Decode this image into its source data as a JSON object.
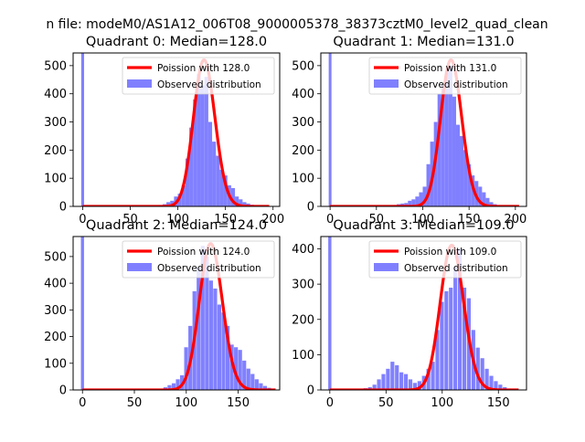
{
  "figure": {
    "suptitle": "n file: modeM0/AS1A12_006T08_9000005378_38373cztM0_level2_quad_clean"
  },
  "colors": {
    "hist": "#8080ff",
    "poisson": "#ff0000"
  },
  "chart_data": [
    {
      "type": "bar",
      "title": "Quadrant 0: Median=128.0",
      "xlim": [
        -10,
        207
      ],
      "ylim": [
        0,
        545
      ],
      "xticks": [
        0,
        50,
        100,
        150,
        200
      ],
      "xtick_labels": [
        "0",
        "50",
        "100",
        "150",
        "200"
      ],
      "yticks": [
        0,
        100,
        200,
        300,
        400,
        500
      ],
      "ytick_labels": [
        "0",
        "100",
        "200",
        "300",
        "400",
        "500"
      ],
      "legend": {
        "position": "top-right",
        "line_label": "Poission with 128.0",
        "patch_label": "Observed distribution"
      },
      "median": 128,
      "hist": {
        "bin_width": 4,
        "spike": {
          "x": 0,
          "width": 3,
          "value": 600
        },
        "bins": [
          [
            72,
            2
          ],
          [
            76,
            3
          ],
          [
            80,
            5
          ],
          [
            84,
            8
          ],
          [
            88,
            15
          ],
          [
            92,
            20
          ],
          [
            96,
            35
          ],
          [
            100,
            45
          ],
          [
            104,
            75
          ],
          [
            108,
            170
          ],
          [
            112,
            280
          ],
          [
            116,
            380
          ],
          [
            120,
            470
          ],
          [
            124,
            430
          ],
          [
            128,
            460
          ],
          [
            132,
            300
          ],
          [
            136,
            230
          ],
          [
            140,
            180
          ],
          [
            144,
            130
          ],
          [
            148,
            110
          ],
          [
            152,
            75
          ],
          [
            156,
            65
          ],
          [
            160,
            35
          ],
          [
            164,
            25
          ],
          [
            168,
            15
          ],
          [
            172,
            10
          ],
          [
            176,
            6
          ],
          [
            180,
            3
          ],
          [
            184,
            2
          ],
          [
            188,
            1
          ]
        ]
      },
      "poisson": {
        "x_range": [
          0,
          196
        ],
        "peak": 520
      }
    },
    {
      "type": "bar",
      "title": "Quadrant 1: Median=131.0",
      "xlim": [
        -10,
        212
      ],
      "ylim": [
        0,
        545
      ],
      "xticks": [
        0,
        50,
        100,
        150,
        200
      ],
      "xtick_labels": [
        "0",
        "50",
        "100",
        "150",
        "200"
      ],
      "yticks": [
        0,
        100,
        200,
        300,
        400,
        500
      ],
      "ytick_labels": [
        "0",
        "100",
        "200",
        "300",
        "400",
        "500"
      ],
      "legend": {
        "position": "top-right",
        "line_label": "Poission with 131.0",
        "patch_label": "Observed distribution"
      },
      "median": 131,
      "hist": {
        "bin_width": 4,
        "spike": {
          "x": 0,
          "width": 3,
          "value": 600
        },
        "bins": [
          [
            60,
            2
          ],
          [
            64,
            3
          ],
          [
            68,
            5
          ],
          [
            72,
            8
          ],
          [
            76,
            10
          ],
          [
            80,
            12
          ],
          [
            84,
            20
          ],
          [
            88,
            25
          ],
          [
            92,
            35
          ],
          [
            96,
            50
          ],
          [
            100,
            70
          ],
          [
            104,
            150
          ],
          [
            108,
            230
          ],
          [
            112,
            300
          ],
          [
            116,
            400
          ],
          [
            120,
            430
          ],
          [
            124,
            480
          ],
          [
            128,
            500
          ],
          [
            132,
            390
          ],
          [
            136,
            290
          ],
          [
            140,
            250
          ],
          [
            144,
            200
          ],
          [
            148,
            150
          ],
          [
            152,
            110
          ],
          [
            156,
            90
          ],
          [
            160,
            70
          ],
          [
            164,
            50
          ],
          [
            168,
            30
          ],
          [
            172,
            15
          ],
          [
            176,
            8
          ],
          [
            180,
            4
          ],
          [
            184,
            2
          ]
        ]
      },
      "poisson": {
        "x_range": [
          0,
          204
        ],
        "peak": 520
      }
    },
    {
      "type": "bar",
      "title": "Quadrant 2: Median=124.0",
      "xlim": [
        -9,
        190
      ],
      "ylim": [
        0,
        575
      ],
      "xticks": [
        0,
        50,
        100,
        150
      ],
      "xtick_labels": [
        "0",
        "50",
        "100",
        "150"
      ],
      "yticks": [
        0,
        100,
        200,
        300,
        400,
        500
      ],
      "ytick_labels": [
        "0",
        "100",
        "200",
        "300",
        "400",
        "500"
      ],
      "legend": {
        "position": "top-right",
        "line_label": "Poission with 124.0",
        "patch_label": "Observed distribution"
      },
      "median": 124,
      "hist": {
        "bin_width": 3.7,
        "spike": {
          "x": 0,
          "width": 3,
          "value": 650
        },
        "bins": [
          [
            70,
            2
          ],
          [
            74,
            5
          ],
          [
            78,
            10
          ],
          [
            82,
            18
          ],
          [
            86,
            25
          ],
          [
            90,
            40
          ],
          [
            94,
            55
          ],
          [
            98,
            160
          ],
          [
            102,
            240
          ],
          [
            106,
            370
          ],
          [
            110,
            460
          ],
          [
            114,
            540
          ],
          [
            118,
            500
          ],
          [
            122,
            410
          ],
          [
            126,
            380
          ],
          [
            130,
            320
          ],
          [
            134,
            290
          ],
          [
            138,
            240
          ],
          [
            142,
            170
          ],
          [
            146,
            160
          ],
          [
            150,
            150
          ],
          [
            154,
            110
          ],
          [
            158,
            80
          ],
          [
            162,
            60
          ],
          [
            166,
            40
          ],
          [
            170,
            25
          ],
          [
            174,
            15
          ],
          [
            178,
            8
          ],
          [
            182,
            3
          ]
        ]
      },
      "poisson": {
        "x_range": [
          0,
          186
        ],
        "peak": 548
      }
    },
    {
      "type": "bar",
      "title": "Quadrant 3: Median=109.0",
      "xlim": [
        -8,
        175
      ],
      "ylim": [
        0,
        435
      ],
      "xticks": [
        0,
        50,
        100,
        150
      ],
      "xtick_labels": [
        "0",
        "50",
        "100",
        "150"
      ],
      "yticks": [
        0,
        100,
        200,
        300,
        400
      ],
      "ytick_labels": [
        "0",
        "100",
        "200",
        "300",
        "400"
      ],
      "legend": {
        "position": "top-right",
        "line_label": "Poission with 109.0",
        "patch_label": "Observed distribution"
      },
      "median": 109,
      "hist": {
        "bin_width": 3.4,
        "spike": {
          "x": 0,
          "width": 2.8,
          "value": 480
        },
        "bins": [
          [
            26,
            3
          ],
          [
            30,
            5
          ],
          [
            34,
            8
          ],
          [
            38,
            15
          ],
          [
            42,
            30
          ],
          [
            46,
            45
          ],
          [
            50,
            60
          ],
          [
            54,
            80
          ],
          [
            58,
            70
          ],
          [
            62,
            50
          ],
          [
            66,
            45
          ],
          [
            70,
            30
          ],
          [
            74,
            20
          ],
          [
            78,
            25
          ],
          [
            82,
            40
          ],
          [
            86,
            60
          ],
          [
            90,
            80
          ],
          [
            94,
            170
          ],
          [
            98,
            250
          ],
          [
            102,
            280
          ],
          [
            106,
            290
          ],
          [
            110,
            350
          ],
          [
            114,
            400
          ],
          [
            118,
            290
          ],
          [
            122,
            260
          ],
          [
            126,
            170
          ],
          [
            130,
            120
          ],
          [
            134,
            90
          ],
          [
            138,
            60
          ],
          [
            142,
            40
          ],
          [
            146,
            25
          ],
          [
            150,
            15
          ],
          [
            154,
            8
          ],
          [
            158,
            4
          ]
        ]
      },
      "poisson": {
        "x_range": [
          0,
          168
        ],
        "peak": 410
      }
    }
  ]
}
